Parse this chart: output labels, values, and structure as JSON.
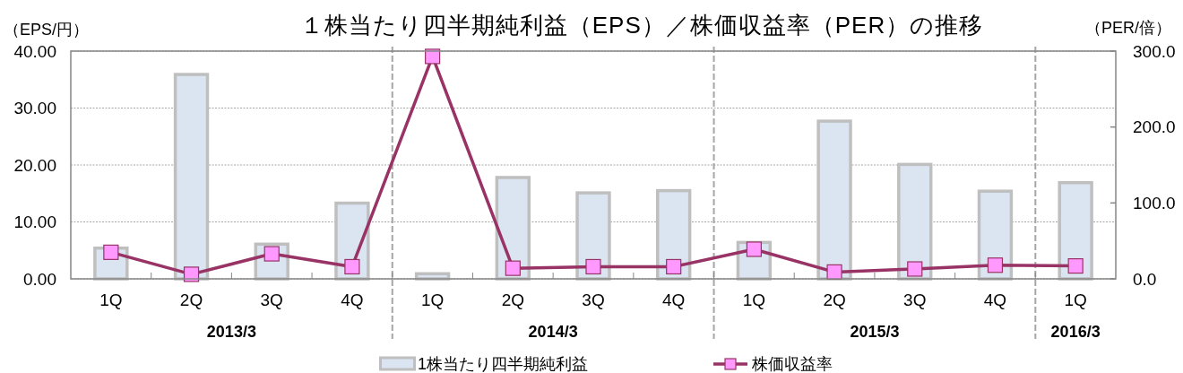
{
  "chart_data": {
    "type": "bar",
    "title": "１株当たり四半期純利益（EPS）／株価収益率（PER）の推移",
    "ylabel": "（EPS/円）",
    "y2label": "（PER/倍）",
    "categories": [
      "1Q",
      "2Q",
      "3Q",
      "4Q",
      "1Q",
      "2Q",
      "3Q",
      "4Q",
      "1Q",
      "2Q",
      "3Q",
      "4Q",
      "1Q"
    ],
    "ylim": [
      0,
      40
    ],
    "yticks": [
      {
        "value": 0,
        "label": "0.00"
      },
      {
        "value": 10,
        "label": "10.00"
      },
      {
        "value": 20,
        "label": "20.00"
      },
      {
        "value": 30,
        "label": "30.00"
      },
      {
        "value": 40,
        "label": "40.00"
      }
    ],
    "y2lim": [
      0,
      300
    ],
    "y2ticks": [
      {
        "value": 0,
        "label": "0.0"
      },
      {
        "value": 100,
        "label": "100.0"
      },
      {
        "value": 200,
        "label": "200.0"
      },
      {
        "value": 300,
        "label": "300.0"
      }
    ],
    "series": [
      {
        "name": "1株当たり四半期純利益",
        "color": "#dbe5f1",
        "values": [
          5.4,
          35.9,
          6.1,
          13.3,
          0.9,
          17.8,
          15.1,
          15.5,
          6.4,
          27.7,
          20.1,
          15.4,
          16.9
        ]
      },
      {
        "name": "株価収益率",
        "type": "line",
        "axis": "y2",
        "color": "#993366",
        "values": [
          35,
          6,
          33,
          16,
          293,
          14,
          16,
          16,
          39,
          9,
          13,
          18,
          17
        ]
      }
    ],
    "marker": "square",
    "line_style": "solid",
    "annotations": [
      "2013/3",
      "2014/3",
      "2015/3",
      "2016/3"
    ],
    "grid": "y",
    "legend": "bottom"
  }
}
